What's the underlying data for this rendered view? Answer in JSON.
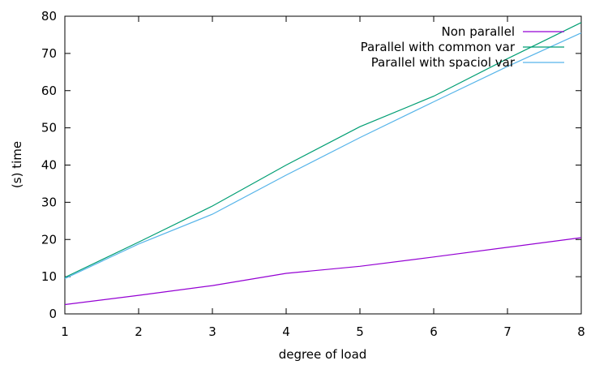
{
  "chart_data": {
    "type": "line",
    "title": "",
    "xlabel": "degree of load",
    "ylabel": "(s) time",
    "xlim": [
      1,
      8
    ],
    "ylim": [
      0,
      80
    ],
    "xticks": [
      1,
      2,
      3,
      4,
      5,
      6,
      7,
      8
    ],
    "yticks": [
      0,
      10,
      20,
      30,
      40,
      50,
      60,
      70,
      80
    ],
    "grid": false,
    "legend_position": "top-right",
    "x": [
      1,
      2,
      3,
      4,
      5,
      6,
      7,
      8
    ],
    "series": [
      {
        "name": "Non parallel",
        "color": "#9400d3",
        "values": [
          2.5,
          5.0,
          7.6,
          10.9,
          12.8,
          15.3,
          17.9,
          20.5
        ]
      },
      {
        "name": "Parallel with common var",
        "color": "#009e73",
        "values": [
          9.8,
          19.3,
          29.0,
          40.0,
          50.3,
          58.5,
          68.6,
          78.3
        ]
      },
      {
        "name": "Parallel with spaciol var",
        "color": "#56b4e9",
        "values": [
          9.5,
          18.8,
          26.8,
          37.3,
          47.4,
          57.0,
          66.5,
          75.5
        ]
      }
    ]
  }
}
